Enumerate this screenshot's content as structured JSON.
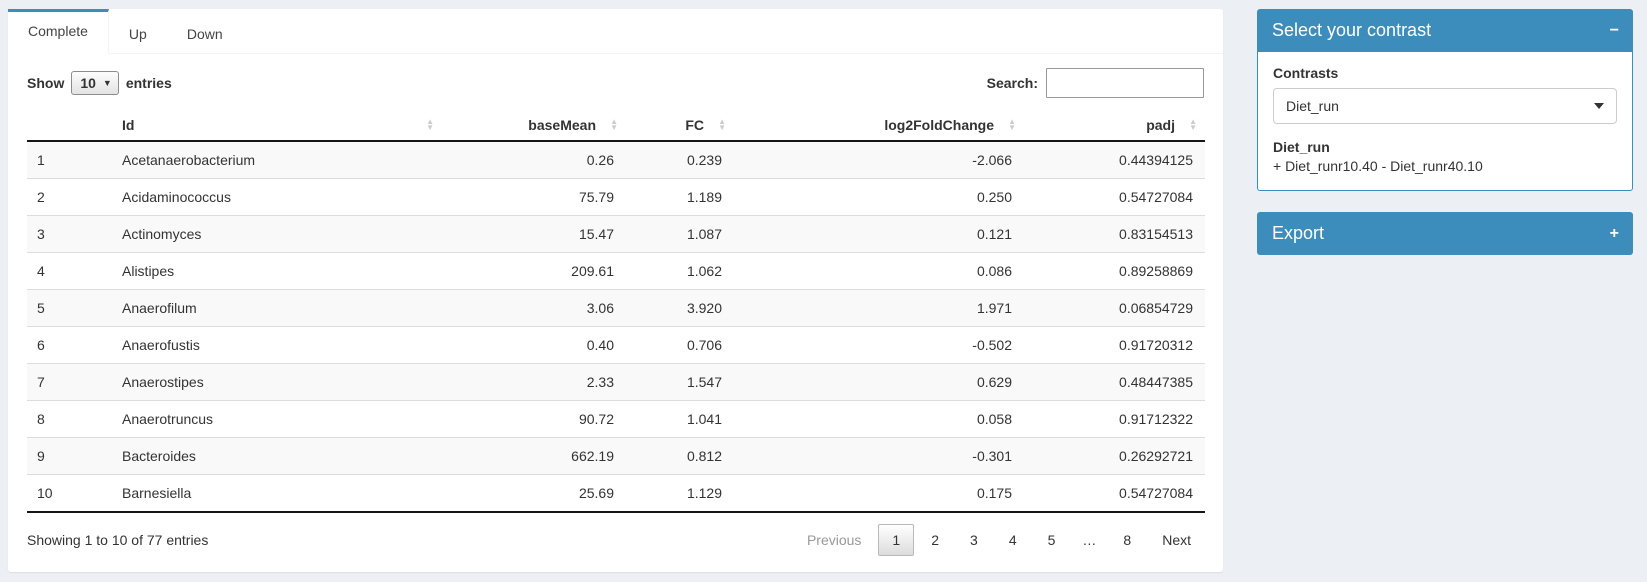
{
  "page": {
    "accent_color": "#3c8dbc",
    "background_color": "#ecf0f5"
  },
  "icons": {
    "sort_asc": "▲",
    "sort_desc": "▼",
    "select_caret": "▼",
    "collapse_minus": "−",
    "expand_plus": "+"
  },
  "tabs": [
    {
      "label": "Complete",
      "active": true
    },
    {
      "label": "Up",
      "active": false
    },
    {
      "label": "Down",
      "active": false
    }
  ],
  "table_controls": {
    "show_label": "Show",
    "page_length": "10",
    "entries_label": "entries",
    "search_label": "Search:",
    "search_value": ""
  },
  "table": {
    "columns": [
      "Id",
      "baseMean",
      "FC",
      "log2FoldChange",
      "padj"
    ],
    "rows": [
      {
        "n": "1",
        "id": "Acetanaerobacterium",
        "baseMean": "0.26",
        "fc": "0.239",
        "log2fc": "-2.066",
        "padj": "0.44394125"
      },
      {
        "n": "2",
        "id": "Acidaminococcus",
        "baseMean": "75.79",
        "fc": "1.189",
        "log2fc": "0.250",
        "padj": "0.54727084"
      },
      {
        "n": "3",
        "id": "Actinomyces",
        "baseMean": "15.47",
        "fc": "1.087",
        "log2fc": "0.121",
        "padj": "0.83154513"
      },
      {
        "n": "4",
        "id": "Alistipes",
        "baseMean": "209.61",
        "fc": "1.062",
        "log2fc": "0.086",
        "padj": "0.89258869"
      },
      {
        "n": "5",
        "id": "Anaerofilum",
        "baseMean": "3.06",
        "fc": "3.920",
        "log2fc": "1.971",
        "padj": "0.06854729"
      },
      {
        "n": "6",
        "id": "Anaerofustis",
        "baseMean": "0.40",
        "fc": "0.706",
        "log2fc": "-0.502",
        "padj": "0.91720312"
      },
      {
        "n": "7",
        "id": "Anaerostipes",
        "baseMean": "2.33",
        "fc": "1.547",
        "log2fc": "0.629",
        "padj": "0.48447385"
      },
      {
        "n": "8",
        "id": "Anaerotruncus",
        "baseMean": "90.72",
        "fc": "1.041",
        "log2fc": "0.058",
        "padj": "0.91712322"
      },
      {
        "n": "9",
        "id": "Bacteroides",
        "baseMean": "662.19",
        "fc": "0.812",
        "log2fc": "-0.301",
        "padj": "0.26292721"
      },
      {
        "n": "10",
        "id": "Barnesiella",
        "baseMean": "25.69",
        "fc": "1.129",
        "log2fc": "0.175",
        "padj": "0.54727084"
      }
    ],
    "info": "Showing 1 to 10 of 77 entries",
    "pagination": {
      "previous": "Previous",
      "pages": [
        "1",
        "2",
        "3",
        "4",
        "5",
        "…",
        "8"
      ],
      "current": "1",
      "next": "Next"
    }
  },
  "contrast_box": {
    "title": "Select your contrast",
    "contrasts_label": "Contrasts",
    "selected_contrast": "Diet_run",
    "contrast_name": "Diet_run",
    "contrast_formula": "+ Diet_runr10.40 - Diet_runr40.10"
  },
  "export_box": {
    "title": "Export"
  }
}
